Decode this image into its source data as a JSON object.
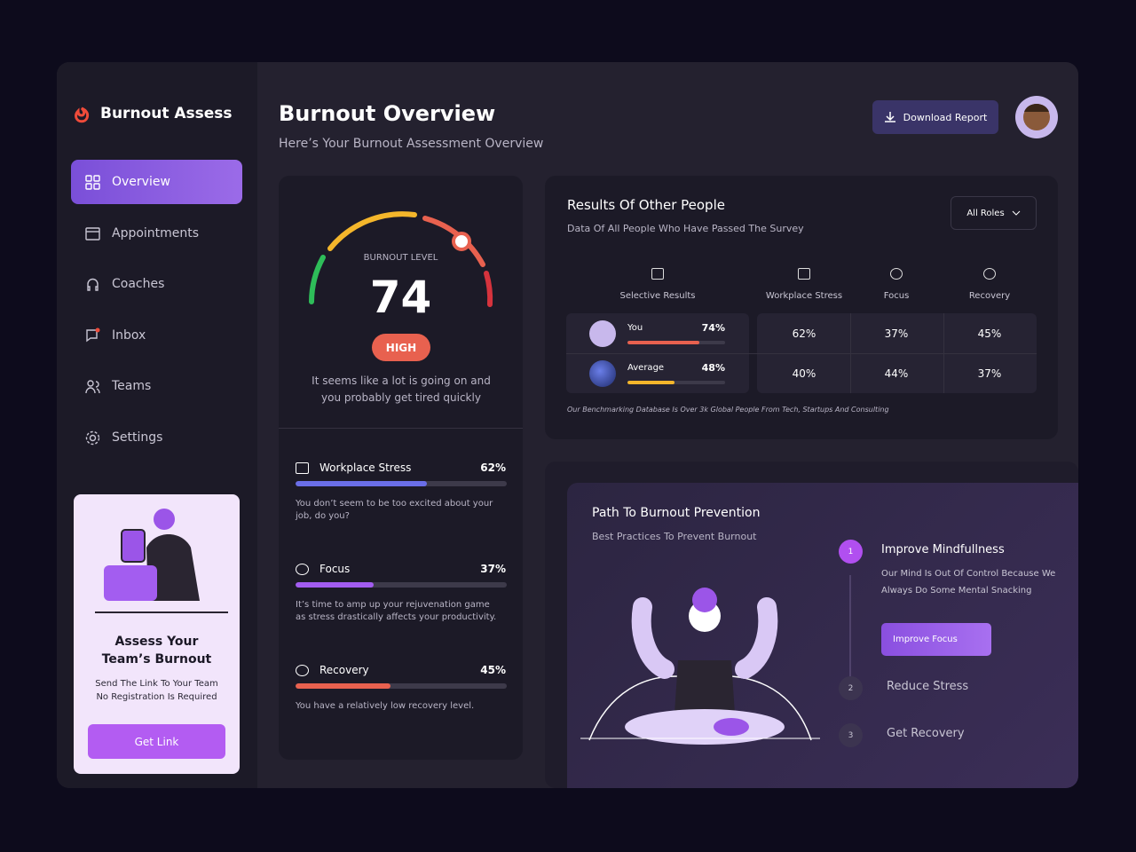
{
  "brand": "Burnout Assess",
  "nav": [
    "Overview",
    "Appointments",
    "Coaches",
    "Inbox",
    "Teams",
    "Settings"
  ],
  "promo": {
    "title": "Assess Your Team’s Burnout",
    "lines": [
      "Send The Link To Your Team",
      "No Registration Is Required"
    ],
    "button": "Get Link"
  },
  "header": {
    "title": "Burnout Overview",
    "subtitle": "Here’s Your Burnout Assessment Overview",
    "button": "Download Report"
  },
  "gauge": {
    "label": "BURNOUT LEVEL",
    "value": 74,
    "level": "HIGH",
    "message": "It seems like a lot is going on and you probably get tired quickly"
  },
  "metrics": [
    {
      "name": "Workplace Stress",
      "value": {
        "value": 62,
        "label": "62%"
      },
      "note": "You don’t seem to be too excited about your job, do you?"
    },
    {
      "name": "Focus",
      "value": {
        "value": 37,
        "label": "37%"
      },
      "note": "It’s time to amp up your rejuvenation game as stress drastically affects your productivity."
    },
    {
      "name": "Recovery",
      "value": {
        "value": 45,
        "label": "45%"
      },
      "note": "You have a relatively low recovery level."
    }
  ],
  "results": {
    "title": "Results Of Other People",
    "subtitle": "Data Of All People Who Have Passed The Survey",
    "filter": "All Roles",
    "columns": [
      "Selective Results",
      "Workplace Stress",
      "Focus",
      "Recovery"
    ],
    "rows": [
      {
        "name": "You",
        "score": {
          "value": 74,
          "label": "74%"
        },
        "cells": [
          "62%",
          "37%",
          "45%"
        ]
      },
      {
        "name": "Average",
        "score": {
          "value": 48,
          "label": "48%"
        },
        "cells": [
          "40%",
          "44%",
          "37%"
        ]
      }
    ],
    "footnote": "Our Benchmarking Database Is Over 3k Global People From Tech, Startups And Consulting"
  },
  "prevention": {
    "title": "Path To Burnout Prevention",
    "subtitle": "Best Practices To Prevent Burnout",
    "steps": [
      {
        "number": 1,
        "title": "Improve Mindfullness",
        "text": "Our Mind Is Out Of Control Because We Always Do Some Mental Snacking",
        "button": "Improve Focus"
      },
      {
        "number": 2,
        "title": "Reduce Stress"
      },
      {
        "number": 3,
        "title": "Get Recovery"
      }
    ]
  }
}
